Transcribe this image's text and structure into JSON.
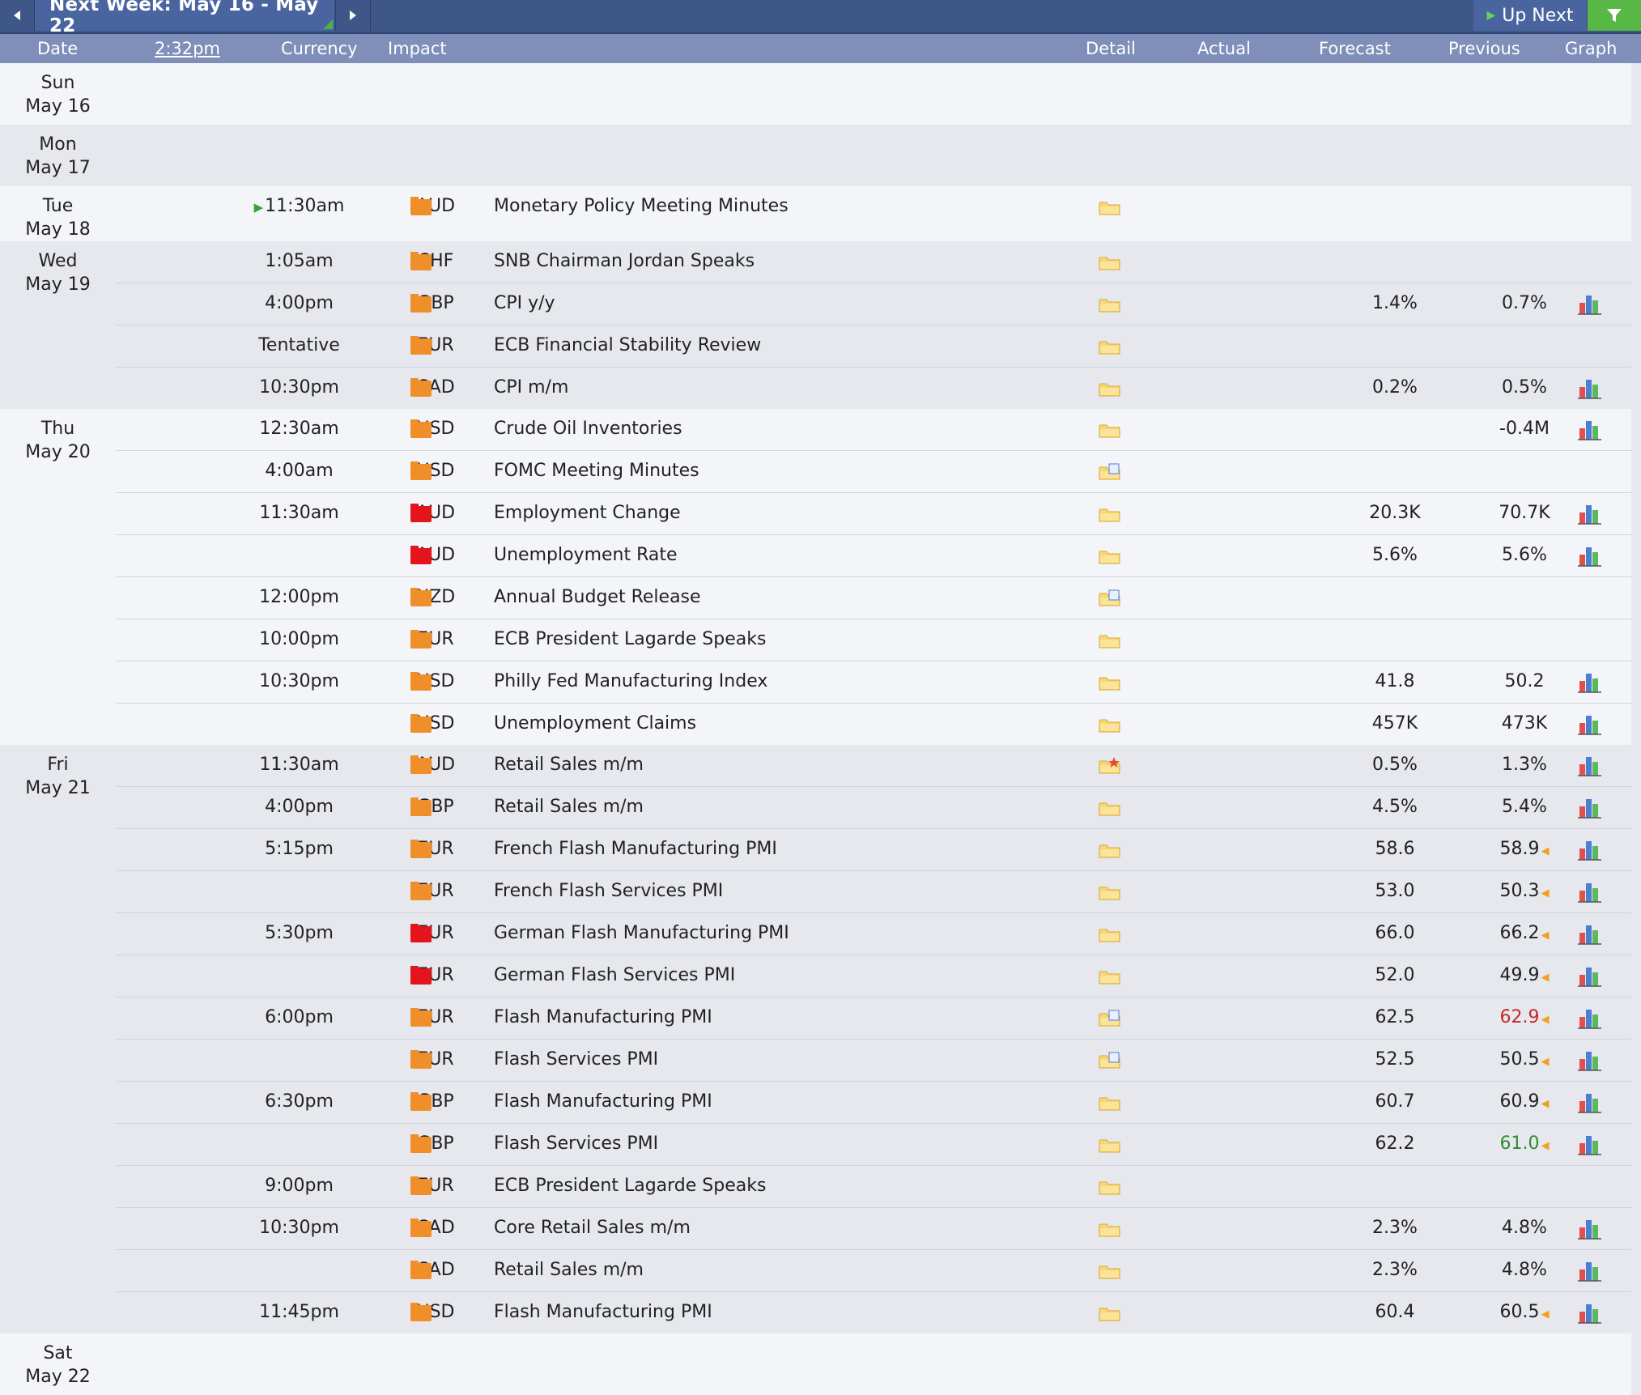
{
  "toolbar": {
    "week_title": "Next Week: May 16 - May 22",
    "up_next_label": "Up Next"
  },
  "columns": {
    "date": "Date",
    "time": "2:32pm",
    "currency": "Currency",
    "impact": "Impact",
    "detail": "Detail",
    "actual": "Actual",
    "forecast": "Forecast",
    "previous": "Previous",
    "graph": "Graph"
  },
  "colors": {
    "header_bar": "#3f5689",
    "column_bar": "#7f8fba",
    "impact_medium": "#f08e2a",
    "impact_high": "#e3141b",
    "previous_worse": "#c62828",
    "previous_better": "#2e8b2e"
  },
  "days": [
    {
      "dow": "Sun",
      "date": "May 16",
      "events": []
    },
    {
      "dow": "Mon",
      "date": "May 17",
      "events": []
    },
    {
      "dow": "Tue",
      "date": "May 18",
      "events": [
        {
          "time": "11:30am",
          "next": true,
          "currency": "AUD",
          "impact": "medium",
          "name": "Monetary Policy Meeting Minutes",
          "detail_icon": "folder-icon",
          "forecast": "",
          "previous": "",
          "graph": false
        }
      ]
    },
    {
      "dow": "Wed",
      "date": "May 19",
      "events": [
        {
          "time": "1:05am",
          "currency": "CHF",
          "impact": "medium",
          "name": "SNB Chairman Jordan Speaks",
          "detail_icon": "folder-icon",
          "forecast": "",
          "previous": "",
          "graph": false
        },
        {
          "time": "4:00pm",
          "currency": "GBP",
          "impact": "medium",
          "name": "CPI y/y",
          "detail_icon": "folder-icon",
          "forecast": "1.4%",
          "previous": "0.7%",
          "graph": true
        },
        {
          "time": "Tentative",
          "currency": "EUR",
          "impact": "medium",
          "name": "ECB Financial Stability Review",
          "detail_icon": "folder-icon",
          "forecast": "",
          "previous": "",
          "graph": false
        },
        {
          "time": "10:30pm",
          "currency": "CAD",
          "impact": "medium",
          "name": "CPI m/m",
          "detail_icon": "folder-icon",
          "forecast": "0.2%",
          "previous": "0.5%",
          "graph": true
        }
      ]
    },
    {
      "dow": "Thu",
      "date": "May 20",
      "events": [
        {
          "time": "12:30am",
          "currency": "USD",
          "impact": "medium",
          "name": "Crude Oil Inventories",
          "detail_icon": "folder-icon",
          "forecast": "",
          "previous": "-0.4M",
          "graph": true
        },
        {
          "time": "4:00am",
          "currency": "USD",
          "impact": "medium",
          "name": "FOMC Meeting Minutes",
          "detail_icon": "folder-doc-icon",
          "forecast": "",
          "previous": "",
          "graph": false
        },
        {
          "time": "11:30am",
          "currency": "AUD",
          "impact": "high",
          "name": "Employment Change",
          "detail_icon": "folder-icon",
          "forecast": "20.3K",
          "previous": "70.7K",
          "graph": true
        },
        {
          "time": "",
          "currency": "AUD",
          "impact": "high",
          "name": "Unemployment Rate",
          "detail_icon": "folder-icon",
          "forecast": "5.6%",
          "previous": "5.6%",
          "graph": true
        },
        {
          "time": "12:00pm",
          "currency": "NZD",
          "impact": "medium",
          "name": "Annual Budget Release",
          "detail_icon": "folder-doc-icon",
          "forecast": "",
          "previous": "",
          "graph": false
        },
        {
          "time": "10:00pm",
          "currency": "EUR",
          "impact": "medium",
          "name": "ECB President Lagarde Speaks",
          "detail_icon": "folder-icon",
          "forecast": "",
          "previous": "",
          "graph": false
        },
        {
          "time": "10:30pm",
          "currency": "USD",
          "impact": "medium",
          "name": "Philly Fed Manufacturing Index",
          "detail_icon": "folder-icon",
          "forecast": "41.8",
          "previous": "50.2",
          "graph": true
        },
        {
          "time": "",
          "currency": "USD",
          "impact": "medium",
          "name": "Unemployment Claims",
          "detail_icon": "folder-icon",
          "forecast": "457K",
          "previous": "473K",
          "graph": true
        }
      ]
    },
    {
      "dow": "Fri",
      "date": "May 21",
      "events": [
        {
          "time": "11:30am",
          "currency": "AUD",
          "impact": "medium",
          "name": "Retail Sales m/m",
          "detail_icon": "folder-star-icon",
          "forecast": "0.5%",
          "previous": "1.3%",
          "graph": true
        },
        {
          "time": "4:00pm",
          "currency": "GBP",
          "impact": "medium",
          "name": "Retail Sales m/m",
          "detail_icon": "folder-icon",
          "forecast": "4.5%",
          "previous": "5.4%",
          "graph": true
        },
        {
          "time": "5:15pm",
          "currency": "EUR",
          "impact": "medium",
          "name": "French Flash Manufacturing PMI",
          "detail_icon": "folder-icon",
          "forecast": "58.6",
          "previous": "58.9",
          "revised": true,
          "graph": true
        },
        {
          "time": "",
          "currency": "EUR",
          "impact": "medium",
          "name": "French Flash Services PMI",
          "detail_icon": "folder-icon",
          "forecast": "53.0",
          "previous": "50.3",
          "revised": true,
          "graph": true
        },
        {
          "time": "5:30pm",
          "currency": "EUR",
          "impact": "high",
          "name": "German Flash Manufacturing PMI",
          "detail_icon": "folder-icon",
          "forecast": "66.0",
          "previous": "66.2",
          "revised": true,
          "graph": true
        },
        {
          "time": "",
          "currency": "EUR",
          "impact": "high",
          "name": "German Flash Services PMI",
          "detail_icon": "folder-icon",
          "forecast": "52.0",
          "previous": "49.9",
          "revised": true,
          "graph": true
        },
        {
          "time": "6:00pm",
          "currency": "EUR",
          "impact": "medium",
          "name": "Flash Manufacturing PMI",
          "detail_icon": "folder-doc-icon",
          "forecast": "62.5",
          "previous": "62.9",
          "revised": true,
          "prev_color": "red",
          "graph": true
        },
        {
          "time": "",
          "currency": "EUR",
          "impact": "medium",
          "name": "Flash Services PMI",
          "detail_icon": "folder-doc-icon",
          "forecast": "52.5",
          "previous": "50.5",
          "revised": true,
          "graph": true
        },
        {
          "time": "6:30pm",
          "currency": "GBP",
          "impact": "medium",
          "name": "Flash Manufacturing PMI",
          "detail_icon": "folder-icon",
          "forecast": "60.7",
          "previous": "60.9",
          "revised": true,
          "graph": true
        },
        {
          "time": "",
          "currency": "GBP",
          "impact": "medium",
          "name": "Flash Services PMI",
          "detail_icon": "folder-icon",
          "forecast": "62.2",
          "previous": "61.0",
          "revised": true,
          "prev_color": "green",
          "graph": true
        },
        {
          "time": "9:00pm",
          "currency": "EUR",
          "impact": "medium",
          "name": "ECB President Lagarde Speaks",
          "detail_icon": "folder-icon",
          "forecast": "",
          "previous": "",
          "graph": false
        },
        {
          "time": "10:30pm",
          "currency": "CAD",
          "impact": "medium",
          "name": "Core Retail Sales m/m",
          "detail_icon": "folder-icon",
          "forecast": "2.3%",
          "previous": "4.8%",
          "graph": true
        },
        {
          "time": "",
          "currency": "CAD",
          "impact": "medium",
          "name": "Retail Sales m/m",
          "detail_icon": "folder-icon",
          "forecast": "2.3%",
          "previous": "4.8%",
          "graph": true
        },
        {
          "time": "11:45pm",
          "currency": "USD",
          "impact": "medium",
          "name": "Flash Manufacturing PMI",
          "detail_icon": "folder-icon",
          "forecast": "60.4",
          "previous": "60.5",
          "revised": true,
          "graph": true
        }
      ]
    },
    {
      "dow": "Sat",
      "date": "May 22",
      "events": []
    }
  ]
}
